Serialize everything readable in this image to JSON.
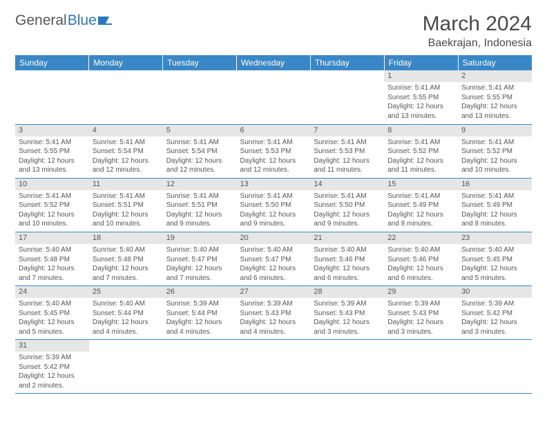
{
  "logo": {
    "word1": "General",
    "word2": "Blue"
  },
  "title": "March 2024",
  "location": "Baekrajan, Indonesia",
  "colors": {
    "header_bg": "#3a87c7",
    "header_text": "#ffffff",
    "daynum_bg": "#e6e6e6",
    "text": "#555555",
    "row_border": "#3a87c7",
    "logo_blue": "#2a77bb"
  },
  "weekdays": [
    "Sunday",
    "Monday",
    "Tuesday",
    "Wednesday",
    "Thursday",
    "Friday",
    "Saturday"
  ],
  "startOffset": 5,
  "days": [
    {
      "n": "1",
      "sunrise": "5:41 AM",
      "sunset": "5:55 PM",
      "daylight": "12 hours and 13 minutes."
    },
    {
      "n": "2",
      "sunrise": "5:41 AM",
      "sunset": "5:55 PM",
      "daylight": "12 hours and 13 minutes."
    },
    {
      "n": "3",
      "sunrise": "5:41 AM",
      "sunset": "5:55 PM",
      "daylight": "12 hours and 13 minutes."
    },
    {
      "n": "4",
      "sunrise": "5:41 AM",
      "sunset": "5:54 PM",
      "daylight": "12 hours and 12 minutes."
    },
    {
      "n": "5",
      "sunrise": "5:41 AM",
      "sunset": "5:54 PM",
      "daylight": "12 hours and 12 minutes."
    },
    {
      "n": "6",
      "sunrise": "5:41 AM",
      "sunset": "5:53 PM",
      "daylight": "12 hours and 12 minutes."
    },
    {
      "n": "7",
      "sunrise": "5:41 AM",
      "sunset": "5:53 PM",
      "daylight": "12 hours and 11 minutes."
    },
    {
      "n": "8",
      "sunrise": "5:41 AM",
      "sunset": "5:52 PM",
      "daylight": "12 hours and 11 minutes."
    },
    {
      "n": "9",
      "sunrise": "5:41 AM",
      "sunset": "5:52 PM",
      "daylight": "12 hours and 10 minutes."
    },
    {
      "n": "10",
      "sunrise": "5:41 AM",
      "sunset": "5:52 PM",
      "daylight": "12 hours and 10 minutes."
    },
    {
      "n": "11",
      "sunrise": "5:41 AM",
      "sunset": "5:51 PM",
      "daylight": "12 hours and 10 minutes."
    },
    {
      "n": "12",
      "sunrise": "5:41 AM",
      "sunset": "5:51 PM",
      "daylight": "12 hours and 9 minutes."
    },
    {
      "n": "13",
      "sunrise": "5:41 AM",
      "sunset": "5:50 PM",
      "daylight": "12 hours and 9 minutes."
    },
    {
      "n": "14",
      "sunrise": "5:41 AM",
      "sunset": "5:50 PM",
      "daylight": "12 hours and 9 minutes."
    },
    {
      "n": "15",
      "sunrise": "5:41 AM",
      "sunset": "5:49 PM",
      "daylight": "12 hours and 8 minutes."
    },
    {
      "n": "16",
      "sunrise": "5:41 AM",
      "sunset": "5:49 PM",
      "daylight": "12 hours and 8 minutes."
    },
    {
      "n": "17",
      "sunrise": "5:40 AM",
      "sunset": "5:48 PM",
      "daylight": "12 hours and 7 minutes."
    },
    {
      "n": "18",
      "sunrise": "5:40 AM",
      "sunset": "5:48 PM",
      "daylight": "12 hours and 7 minutes."
    },
    {
      "n": "19",
      "sunrise": "5:40 AM",
      "sunset": "5:47 PM",
      "daylight": "12 hours and 7 minutes."
    },
    {
      "n": "20",
      "sunrise": "5:40 AM",
      "sunset": "5:47 PM",
      "daylight": "12 hours and 6 minutes."
    },
    {
      "n": "21",
      "sunrise": "5:40 AM",
      "sunset": "5:46 PM",
      "daylight": "12 hours and 6 minutes."
    },
    {
      "n": "22",
      "sunrise": "5:40 AM",
      "sunset": "5:46 PM",
      "daylight": "12 hours and 6 minutes."
    },
    {
      "n": "23",
      "sunrise": "5:40 AM",
      "sunset": "5:45 PM",
      "daylight": "12 hours and 5 minutes."
    },
    {
      "n": "24",
      "sunrise": "5:40 AM",
      "sunset": "5:45 PM",
      "daylight": "12 hours and 5 minutes."
    },
    {
      "n": "25",
      "sunrise": "5:40 AM",
      "sunset": "5:44 PM",
      "daylight": "12 hours and 4 minutes."
    },
    {
      "n": "26",
      "sunrise": "5:39 AM",
      "sunset": "5:44 PM",
      "daylight": "12 hours and 4 minutes."
    },
    {
      "n": "27",
      "sunrise": "5:39 AM",
      "sunset": "5:43 PM",
      "daylight": "12 hours and 4 minutes."
    },
    {
      "n": "28",
      "sunrise": "5:39 AM",
      "sunset": "5:43 PM",
      "daylight": "12 hours and 3 minutes."
    },
    {
      "n": "29",
      "sunrise": "5:39 AM",
      "sunset": "5:43 PM",
      "daylight": "12 hours and 3 minutes."
    },
    {
      "n": "30",
      "sunrise": "5:39 AM",
      "sunset": "5:42 PM",
      "daylight": "12 hours and 3 minutes."
    },
    {
      "n": "31",
      "sunrise": "5:39 AM",
      "sunset": "5:42 PM",
      "daylight": "12 hours and 2 minutes."
    }
  ],
  "labels": {
    "sunrise": "Sunrise:",
    "sunset": "Sunset:",
    "daylight": "Daylight:"
  }
}
